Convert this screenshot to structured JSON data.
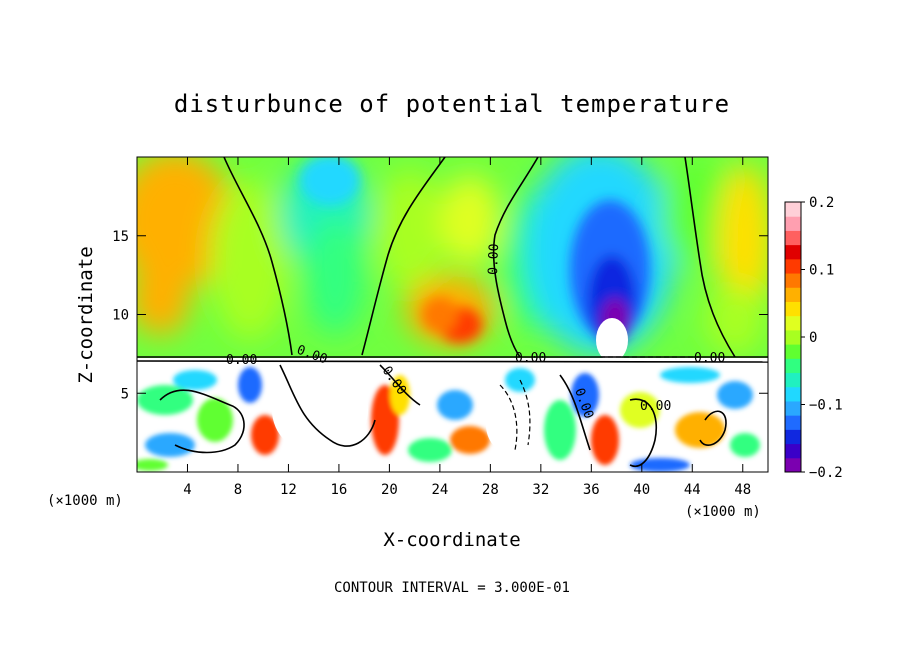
{
  "chart_data": {
    "type": "heatmap",
    "title": "disturbunce of potential temperature",
    "xlabel": "X-coordinate",
    "ylabel": "Z-coordinate",
    "x_unit_label_left": "(×1000 m)",
    "x_unit_label_right": "(×1000 m)",
    "xlim": [
      0,
      50
    ],
    "ylim": [
      0,
      20
    ],
    "x_ticks": [
      4,
      8,
      12,
      16,
      20,
      24,
      28,
      32,
      36,
      40,
      44,
      48
    ],
    "y_ticks": [
      5,
      10,
      15
    ],
    "colorbar": {
      "min": -0.2,
      "max": 0.2,
      "tick_labels": [
        "0.2",
        "0.1",
        "0",
        "−0.1",
        "−0.2"
      ],
      "tick_values": [
        0.2,
        0.1,
        0,
        -0.1,
        -0.2
      ],
      "colors": [
        "#7b00b0",
        "#3a00c8",
        "#1028e0",
        "#1f6bff",
        "#2aa8ff",
        "#20d8ff",
        "#20f0c0",
        "#30ff80",
        "#60ff30",
        "#a8ff20",
        "#e0ff20",
        "#ffe000",
        "#ffb000",
        "#ff7800",
        "#ff3a00",
        "#e00000",
        "#ff6060",
        "#ff9fb0",
        "#ffd0d8"
      ]
    },
    "contour_labels": [
      "0.00",
      "0.00",
      "0.00",
      "0.00",
      "0.00",
      "0.00",
      "0.00",
      "0.00"
    ],
    "footer": "CONTOUR INTERVAL = 3.000E-01"
  }
}
